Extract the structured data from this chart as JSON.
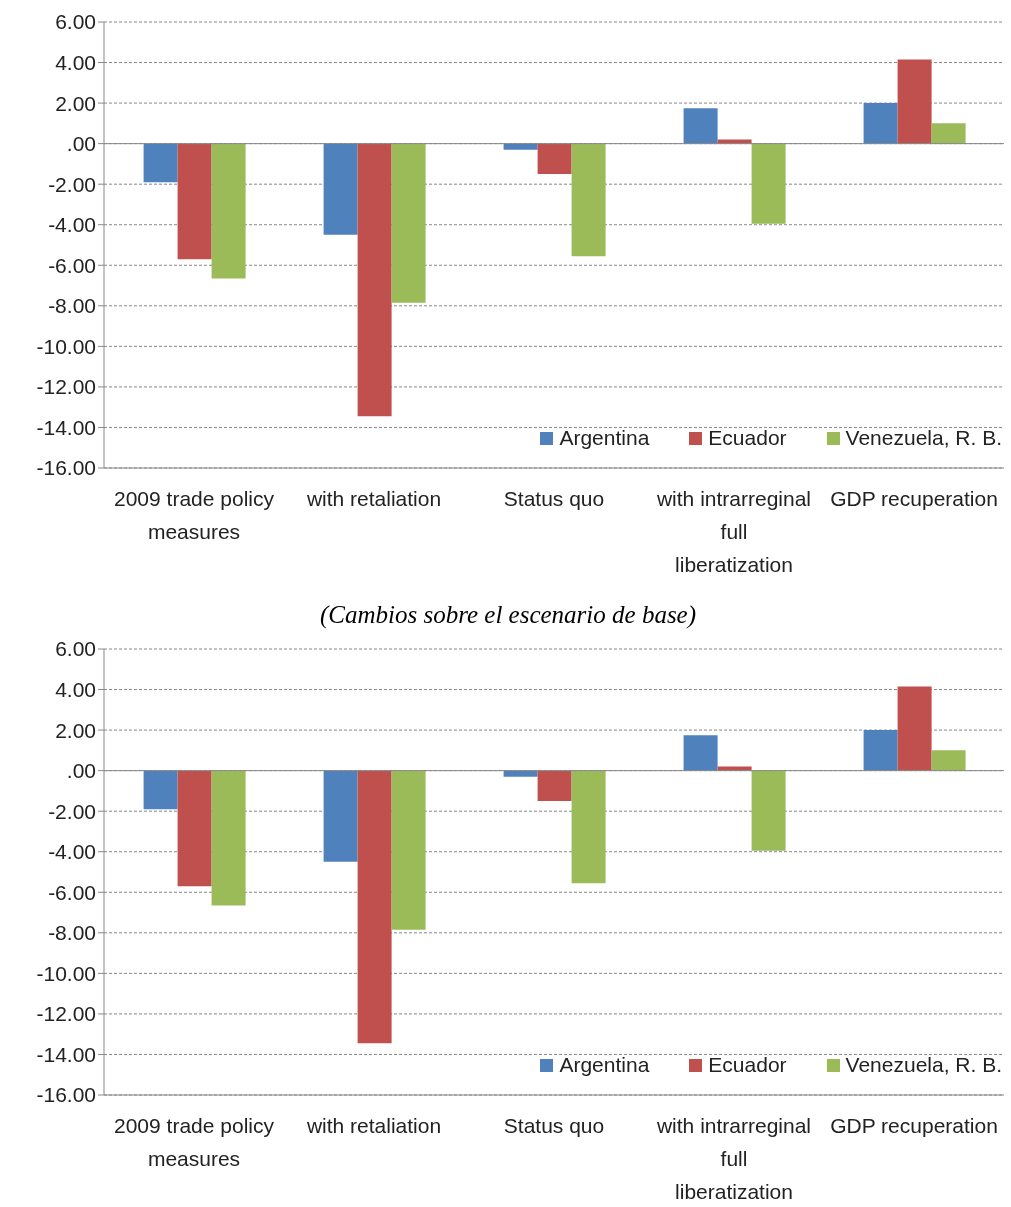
{
  "chart_data": [
    {
      "type": "bar",
      "categories": [
        "2009 trade policy measures",
        "with retaliation",
        "Status quo",
        "with intrarreginal full liberatization",
        "GDP recuperation"
      ],
      "series": [
        {
          "name": "Argentina",
          "color": "#4f81bd",
          "values": [
            -1.9,
            -4.5,
            -0.3,
            1.75,
            2.0
          ]
        },
        {
          "name": "Ecuador",
          "color": "#c0504d",
          "values": [
            -5.7,
            -13.45,
            -1.5,
            0.2,
            4.15
          ]
        },
        {
          "name": "Venezuela, R. B.",
          "color": "#9bbb59",
          "values": [
            -6.65,
            -7.85,
            -5.55,
            -3.95,
            1.0
          ]
        }
      ],
      "ylim": [
        -16,
        6
      ],
      "yticks": [
        {
          "value": -16,
          "label": "-16.00"
        },
        {
          "value": -14,
          "label": "-14.00"
        },
        {
          "value": -12,
          "label": "-12.00"
        },
        {
          "value": -10,
          "label": "-10.00"
        },
        {
          "value": -8,
          "label": "-8.00"
        },
        {
          "value": -6,
          "label": "-6.00"
        },
        {
          "value": -4,
          "label": "-4.00"
        },
        {
          "value": -2,
          "label": "-2.00"
        },
        {
          "value": 0,
          "label": ".00"
        },
        {
          "value": 2,
          "label": "2.00"
        },
        {
          "value": 4,
          "label": "4.00"
        },
        {
          "value": 6,
          "label": "6.00"
        }
      ],
      "grid": "y",
      "legend": "bottom right"
    },
    {
      "type": "bar",
      "subtitle": "(Cambios sobre el escenario de base)",
      "categories": [
        "2009 trade policy measures",
        "with retaliation",
        "Status quo",
        "with intrarreginal full liberatization",
        "GDP recuperation"
      ],
      "series": [
        {
          "name": "Argentina",
          "color": "#4f81bd",
          "values": [
            -1.9,
            -4.5,
            -0.3,
            1.75,
            2.0
          ]
        },
        {
          "name": "Ecuador",
          "color": "#c0504d",
          "values": [
            -5.7,
            -13.45,
            -1.5,
            0.2,
            4.15
          ]
        },
        {
          "name": "Venezuela, R. B.",
          "color": "#9bbb59",
          "values": [
            -6.65,
            -7.85,
            -5.55,
            -3.95,
            1.0
          ]
        }
      ],
      "ylim": [
        -16,
        6
      ],
      "yticks": [
        {
          "value": -16,
          "label": "-16.00"
        },
        {
          "value": -14,
          "label": "-14.00"
        },
        {
          "value": -12,
          "label": "-12.00"
        },
        {
          "value": -10,
          "label": "-10.00"
        },
        {
          "value": -8,
          "label": "-8.00"
        },
        {
          "value": -6,
          "label": "-6.00"
        },
        {
          "value": -4,
          "label": "-4.00"
        },
        {
          "value": -2,
          "label": "-2.00"
        },
        {
          "value": 0,
          "label": ".00"
        },
        {
          "value": 2,
          "label": "2.00"
        },
        {
          "value": 4,
          "label": "4.00"
        },
        {
          "value": 6,
          "label": "6.00"
        }
      ],
      "grid": "y",
      "legend": "bottom right"
    }
  ]
}
